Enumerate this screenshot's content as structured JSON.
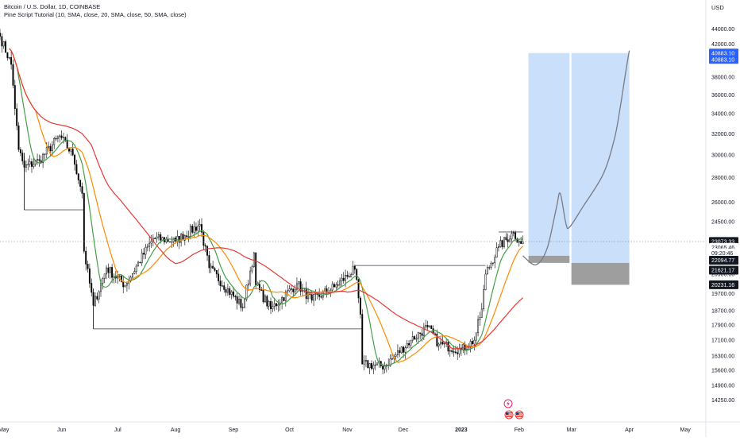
{
  "header": {
    "symbol_line": "Bitcoin / U.S. Dollar, 1D, COINBASE",
    "indicator_line": "Pine Script Tutorial (10, SMA, close, 20, SMA, close, 50, SMA, close)"
  },
  "colors": {
    "candle": "#000000",
    "sma_fast": "#43a047",
    "sma_mid": "#ff8a00",
    "sma_slow": "#e53935",
    "drawing_line": "#787b86",
    "projection_fill": "#c9dffa",
    "stop_fill": "#9e9e9e",
    "tag_blue": "#2962ff",
    "tag_dark": "#131722"
  },
  "icons": [
    "lightning-event-icon",
    "us-flag-event-icon"
  ],
  "chart_data": {
    "type": "candlestick",
    "title": "Bitcoin / U.S. Dollar, 1D, COINBASE",
    "y_axis": {
      "unit": "USD",
      "scale": "log",
      "ylim": [
        13900,
        45000
      ],
      "ticks": [
        "44000.00",
        "42000.00",
        "40000.00",
        "38000.00",
        "36000.00",
        "34000.00",
        "32000.00",
        "30000.00",
        "28000.00",
        "26000.00",
        "24500.00",
        "23000.00",
        "20900.00",
        "19700.00",
        "18700.00",
        "17900.00",
        "17100.00",
        "16300.00",
        "15600.00",
        "14900.00",
        "14250.00"
      ]
    },
    "x_axis": {
      "xlim": [
        "2022-04-29",
        "2023-05-12"
      ],
      "ticks": [
        {
          "label": "May",
          "date": "2022-05-01"
        },
        {
          "label": "Jun",
          "date": "2022-06-01"
        },
        {
          "label": "Jul",
          "date": "2022-07-01"
        },
        {
          "label": "Aug",
          "date": "2022-08-01"
        },
        {
          "label": "Sep",
          "date": "2022-09-01"
        },
        {
          "label": "Oct",
          "date": "2022-10-01"
        },
        {
          "label": "Nov",
          "date": "2022-11-01"
        },
        {
          "label": "Dec",
          "date": "2022-12-01"
        },
        {
          "label": "2023",
          "date": "2023-01-01"
        },
        {
          "label": "Feb",
          "date": "2023-02-01"
        },
        {
          "label": "Mar",
          "date": "2023-03-01"
        },
        {
          "label": "Apr",
          "date": "2023-04-01"
        },
        {
          "label": "May",
          "date": "2023-05-01"
        }
      ]
    },
    "close_anchors": [
      {
        "date": "2022-04-29",
        "close": 43000
      },
      {
        "date": "2022-05-05",
        "close": 39500
      },
      {
        "date": "2022-05-09",
        "close": 30500
      },
      {
        "date": "2022-05-12",
        "close": 28900
      },
      {
        "date": "2022-05-20",
        "close": 29500
      },
      {
        "date": "2022-05-31",
        "close": 31800
      },
      {
        "date": "2022-06-07",
        "close": 30000
      },
      {
        "date": "2022-06-12",
        "close": 26700
      },
      {
        "date": "2022-06-13",
        "close": 22400
      },
      {
        "date": "2022-06-18",
        "close": 19000
      },
      {
        "date": "2022-06-25",
        "close": 21300
      },
      {
        "date": "2022-07-05",
        "close": 20200
      },
      {
        "date": "2022-07-20",
        "close": 23300
      },
      {
        "date": "2022-08-01",
        "close": 23100
      },
      {
        "date": "2022-08-14",
        "close": 24300
      },
      {
        "date": "2022-08-19",
        "close": 21300
      },
      {
        "date": "2022-09-06",
        "close": 18900
      },
      {
        "date": "2022-09-12",
        "close": 22300
      },
      {
        "date": "2022-09-13",
        "close": 20200
      },
      {
        "date": "2022-09-21",
        "close": 18800
      },
      {
        "date": "2022-10-05",
        "close": 20300
      },
      {
        "date": "2022-10-13",
        "close": 19300
      },
      {
        "date": "2022-10-25",
        "close": 20100
      },
      {
        "date": "2022-11-05",
        "close": 21200
      },
      {
        "date": "2022-11-08",
        "close": 18500
      },
      {
        "date": "2022-11-09",
        "close": 15900
      },
      {
        "date": "2022-11-21",
        "close": 15800
      },
      {
        "date": "2022-12-05",
        "close": 17100
      },
      {
        "date": "2022-12-14",
        "close": 17800
      },
      {
        "date": "2022-12-20",
        "close": 16900
      },
      {
        "date": "2023-01-01",
        "close": 16600
      },
      {
        "date": "2023-01-08",
        "close": 17100
      },
      {
        "date": "2023-01-12",
        "close": 18800
      },
      {
        "date": "2023-01-14",
        "close": 20900
      },
      {
        "date": "2023-01-21",
        "close": 22700
      },
      {
        "date": "2023-01-29",
        "close": 23700
      },
      {
        "date": "2023-02-01",
        "close": 23100
      },
      {
        "date": "2023-02-03",
        "close": 23065
      }
    ],
    "moving_averages": [
      {
        "name": "SMA 10",
        "period": 10,
        "color": "#43a047"
      },
      {
        "name": "SMA 20",
        "period": 20,
        "color": "#ff8a00"
      },
      {
        "name": "SMA 50",
        "period": 50,
        "color": "#e53935"
      }
    ],
    "drawings": {
      "horizontal_lines": [
        {
          "from": "2022-05-12",
          "to": "2022-06-13",
          "price": 25400
        },
        {
          "from": "2022-06-18",
          "to": "2022-11-09",
          "price": 17700
        },
        {
          "from": "2022-11-05",
          "to": "2023-01-14",
          "price": 21450
        },
        {
          "from": "2023-01-21",
          "to": "2023-02-03",
          "price": 23750
        }
      ],
      "long_position": {
        "from": "2023-02-06",
        "to": "2023-02-28",
        "entry": 22094.77,
        "target": 40883.1,
        "stop": 21621.17
      },
      "projection_box": {
        "from": "2023-03-01",
        "to": "2023-04-01",
        "entry": 21621.17,
        "target": 40883.1,
        "stop": 20231.16
      },
      "projection_path": [
        {
          "date": "2023-02-03",
          "price": 22094
        },
        {
          "date": "2023-02-10",
          "price": 21500
        },
        {
          "date": "2023-02-16",
          "price": 22600
        },
        {
          "date": "2023-02-21",
          "price": 25600
        },
        {
          "date": "2023-02-23",
          "price": 26700
        },
        {
          "date": "2023-02-26",
          "price": 24400
        },
        {
          "date": "2023-02-28",
          "price": 24100
        },
        {
          "date": "2023-03-07",
          "price": 25600
        },
        {
          "date": "2023-03-18",
          "price": 28300
        },
        {
          "date": "2023-03-24",
          "price": 31500
        },
        {
          "date": "2023-03-27",
          "price": 34500
        },
        {
          "date": "2023-03-30",
          "price": 38500
        },
        {
          "date": "2023-04-01",
          "price": 41200
        }
      ]
    },
    "price_tags": [
      {
        "text": "40883.10",
        "price": 40883.1,
        "style": "blue"
      },
      {
        "text": "40883.10",
        "price": 40100,
        "style": "blue"
      },
      {
        "text": "23073.33",
        "price": 23073.33,
        "style": "dark"
      },
      {
        "text": "23065.46",
        "price": 22660,
        "style": "white"
      },
      {
        "text": "09:20:46",
        "price": 22280,
        "style": "white"
      },
      {
        "text": "22094.77",
        "price": 21800,
        "style": "dark"
      },
      {
        "text": "21621.17",
        "price": 21150,
        "style": "dark"
      },
      {
        "text": "20231.16",
        "price": 20231.16,
        "style": "dark"
      }
    ]
  }
}
